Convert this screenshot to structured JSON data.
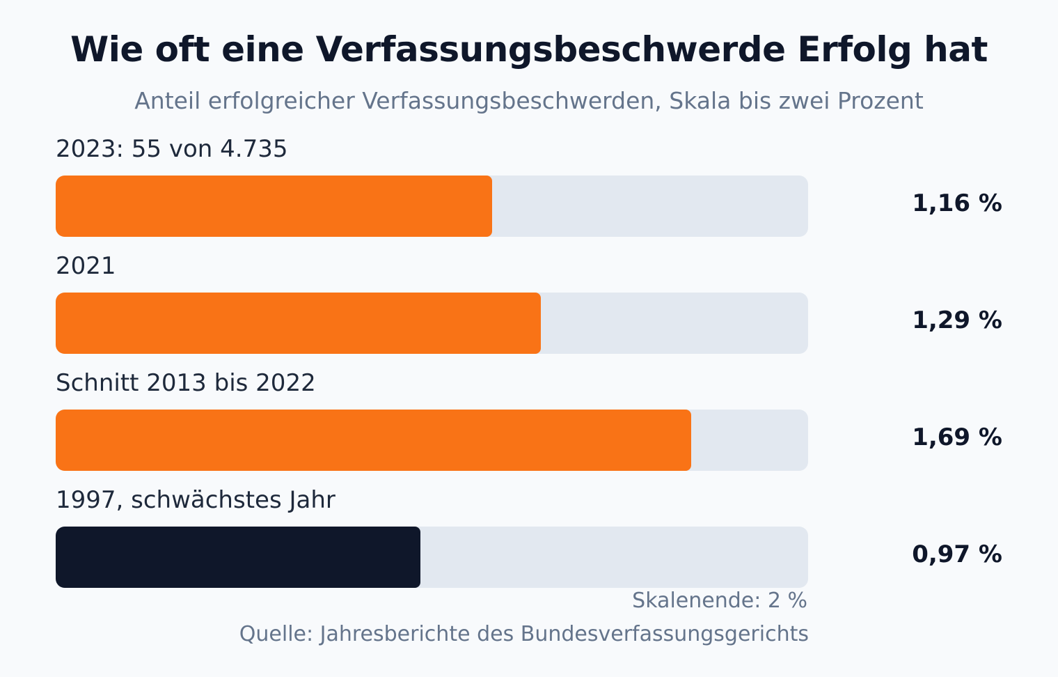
{
  "chart_data": {
    "type": "bar",
    "orientation": "horizontal",
    "title": "Wie oft eine Verfassungsbeschwerde Erfolg hat",
    "subtitle": "Anteil erfolgreicher Verfassungsbeschwerden, Skala bis zwei Prozent",
    "categories": [
      "2023: 55 von 4.735",
      "2021",
      "Schnitt 2013 bis 2022",
      "1997, schwächstes Jahr"
    ],
    "values": [
      1.16,
      1.29,
      1.69,
      0.97
    ],
    "value_labels": [
      "1,16 %",
      "1,29 %",
      "1,69 %",
      "0,97 %"
    ],
    "xlim": [
      0,
      2
    ],
    "unit": "%",
    "bar_colors": [
      "#f97316",
      "#f97316",
      "#f97316",
      "#0f172a"
    ],
    "track_color": "#e2e8f0",
    "scale_note": "Skalenende: 2 %",
    "source": "Quelle: Jahresberichte des Bundesverfassungsgerichts",
    "grid": false,
    "legend": "none"
  }
}
